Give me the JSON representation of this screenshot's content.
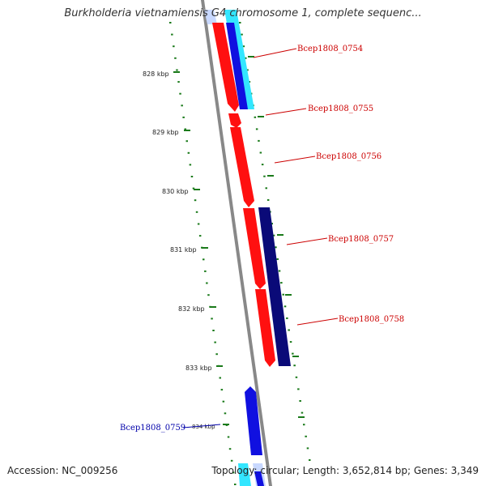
{
  "title": "Burkholderia vietnamiensis G4 chromosome 1, complete sequenc...",
  "footer": {
    "accession": "Accession: NC_009256",
    "summary": "Topology: circular; Length: 3,652,814 bp; Genes: 3,349"
  },
  "colors": {
    "forward_gene": "#ff0000",
    "reverse_gene_dark": "#0a0a78",
    "reverse_gene_blue": "#1010e0",
    "reverse_gene_cyan": "#00e0ff",
    "backbone": "#888888",
    "tick": "#1a7a1a",
    "gene_label_forward": "#cc0000",
    "gene_label_reverse": "#0000aa"
  },
  "scale_labels": [
    "828 kbp",
    "829 kbp",
    "830 kbp",
    "831 kbp",
    "832 kbp",
    "833 kbp",
    "834 kbp"
  ],
  "genes": [
    {
      "name": "Bcep1808_0754",
      "strand": "forward"
    },
    {
      "name": "Bcep1808_0755",
      "strand": "forward"
    },
    {
      "name": "Bcep1808_0756",
      "strand": "forward"
    },
    {
      "name": "Bcep1808_0757",
      "strand": "reverse"
    },
    {
      "name": "Bcep1808_0758",
      "strand": "forward"
    },
    {
      "name": "Bcep1808_0759",
      "strand": "reverse"
    }
  ]
}
